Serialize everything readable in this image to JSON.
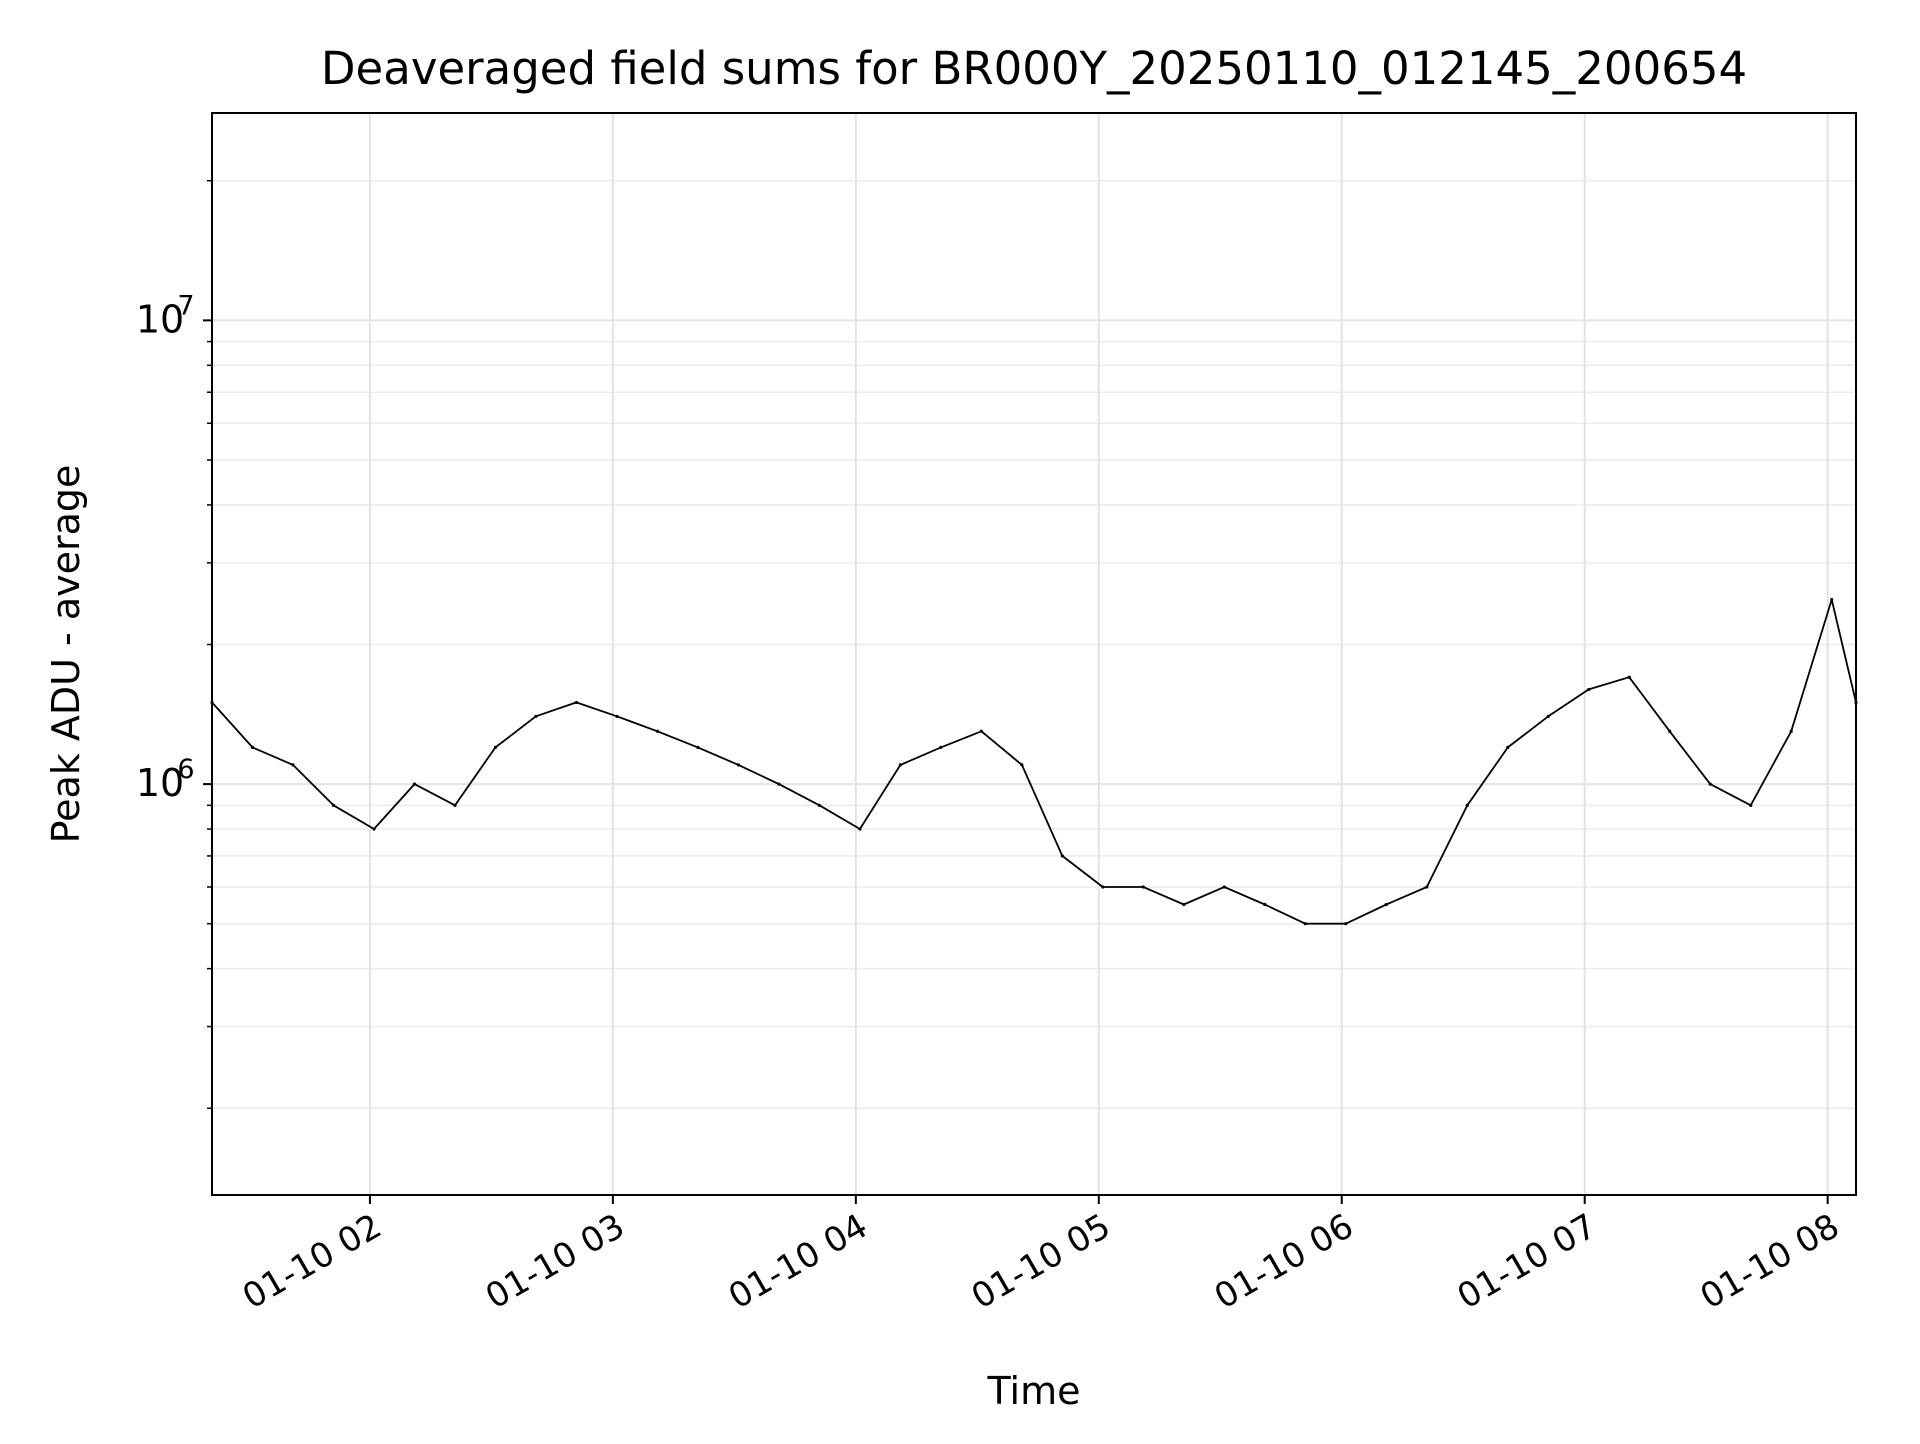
{
  "chart_data": {
    "type": "line",
    "title": "Deaveraged field sums for BR000Y_20250110_012145_200654",
    "xlabel": "Time",
    "ylabel": "Peak ADU - average",
    "y_scale": "log",
    "ylim": [
      130000,
      28000000
    ],
    "xlim": [
      "01-10 01:21",
      "01-10 08:07"
    ],
    "x_ticks": [
      "01-10 02",
      "01-10 03",
      "01-10 04",
      "01-10 05",
      "01-10 06",
      "01-10 07",
      "01-10 08"
    ],
    "y_ticks": [
      {
        "label_base": "10",
        "label_exp": "6",
        "value": 1000000
      },
      {
        "label_base": "10",
        "label_exp": "7",
        "value": 10000000
      }
    ],
    "grid": true,
    "legend": "none",
    "line_color": "#000000",
    "series": [
      {
        "x": [
          "01-10 01:21",
          "01-10 01:31",
          "01-10 01:41",
          "01-10 01:51",
          "01-10 02:01",
          "01-10 02:11",
          "01-10 02:21",
          "01-10 02:31",
          "01-10 02:41",
          "01-10 02:51",
          "01-10 03:01",
          "01-10 03:11",
          "01-10 03:21",
          "01-10 03:31",
          "01-10 03:41",
          "01-10 03:51",
          "01-10 04:01",
          "01-10 04:11",
          "01-10 04:21",
          "01-10 04:31",
          "01-10 04:41",
          "01-10 04:51",
          "01-10 05:01",
          "01-10 05:11",
          "01-10 05:21",
          "01-10 05:31",
          "01-10 05:41",
          "01-10 05:51",
          "01-10 06:01",
          "01-10 06:11",
          "01-10 06:21",
          "01-10 06:31",
          "01-10 06:41",
          "01-10 06:51",
          "01-10 07:01",
          "01-10 07:11",
          "01-10 07:21",
          "01-10 07:31",
          "01-10 07:41",
          "01-10 07:51",
          "01-10 08:01",
          "01-10 08:07"
        ],
        "values": [
          1500000,
          1200000,
          1100000,
          900000,
          800000,
          1000000,
          900000,
          1200000,
          1400000,
          1500000,
          1400000,
          1300000,
          1200000,
          1100000,
          1000000,
          900000,
          800000,
          1100000,
          1200000,
          1300000,
          1100000,
          700000,
          600000,
          600000,
          550000,
          600000,
          550000,
          500000,
          500000,
          550000,
          600000,
          900000,
          1200000,
          1400000,
          1600000,
          1700000,
          1300000,
          1000000,
          900000,
          1300000,
          2500000,
          1500000
        ]
      }
    ]
  }
}
